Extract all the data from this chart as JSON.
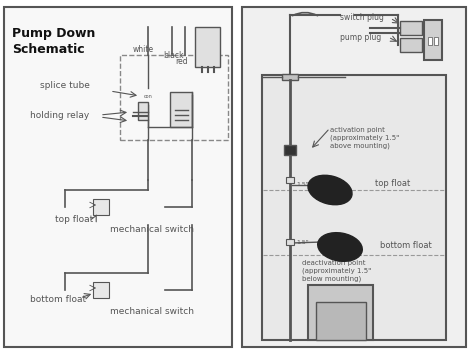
{
  "bg_color": "#ffffff",
  "border_color": "#555555",
  "line_color": "#555555",
  "dashed_color": "#888888",
  "light_gray": "#cccccc",
  "medium_gray": "#aaaaaa",
  "dark_gray": "#555555",
  "water_color": "#d8d8d8",
  "water_color2": "#e8e8e8",
  "title": "Pump Down\nSchematic",
  "left_labels": {
    "splice_tube": "splice tube",
    "holding_relay": "holding relay",
    "top_float": "top float",
    "mech_switch1": "mechanical switch",
    "bottom_float": "bottom float",
    "mech_switch2": "mechanical switch"
  },
  "right_labels": {
    "switch_plug": "switch plug",
    "pump_plug": "pump plug",
    "activation": "activation point\n(approximately 1.5\"\nabove mounting)",
    "top_float": "top float",
    "deactivation": "deactivation point\n(approximately 1.5\"\nbelow mounting)",
    "bottom_float": "bottom float"
  },
  "wire_labels": {
    "white": "white",
    "black": "black",
    "red": "red"
  }
}
